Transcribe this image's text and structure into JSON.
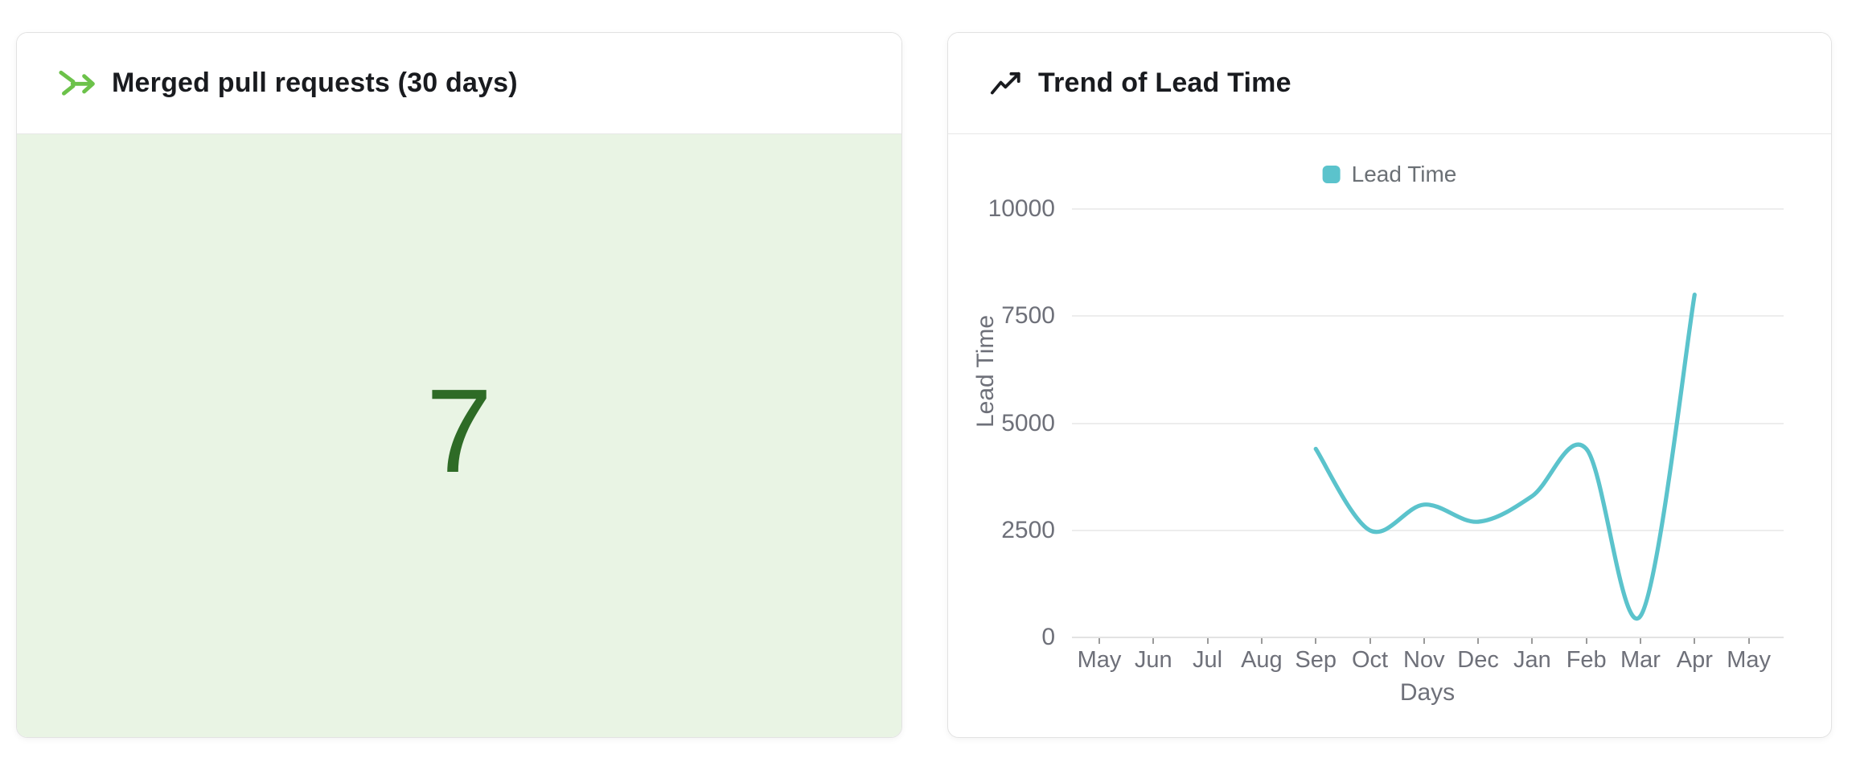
{
  "cards": {
    "merged_prs": {
      "title": "Merged pull requests (30 days)",
      "icon": "git-merge-icon",
      "value": "7",
      "colors": {
        "icon_green": "#6cc24a",
        "value_green": "#2e6b26",
        "body_background": "#e9f4e4"
      }
    },
    "lead_time": {
      "title": "Trend of Lead Time",
      "icon": "trending-up-icon"
    }
  },
  "chart_data": {
    "type": "line",
    "title": "Trend of Lead Time",
    "legend_position": "top",
    "x": [
      "May",
      "Jun",
      "Jul",
      "Aug",
      "Sep",
      "Oct",
      "Nov",
      "Dec",
      "Jan",
      "Feb",
      "Mar",
      "Apr",
      "May"
    ],
    "series": [
      {
        "name": "Lead Time",
        "color": "#5bc3cc",
        "values": [
          null,
          null,
          null,
          null,
          4400,
          2500,
          3100,
          2700,
          3300,
          4400,
          500,
          8000,
          null
        ]
      }
    ],
    "xlabel": "Days",
    "ylabel": "Lead Time",
    "yticks": [
      0,
      2500,
      5000,
      7500,
      10000
    ],
    "ylim": [
      0,
      10000
    ],
    "grid": true,
    "smooth": true,
    "axis_text_color": "#6e7079",
    "grid_color": "#ededed"
  }
}
